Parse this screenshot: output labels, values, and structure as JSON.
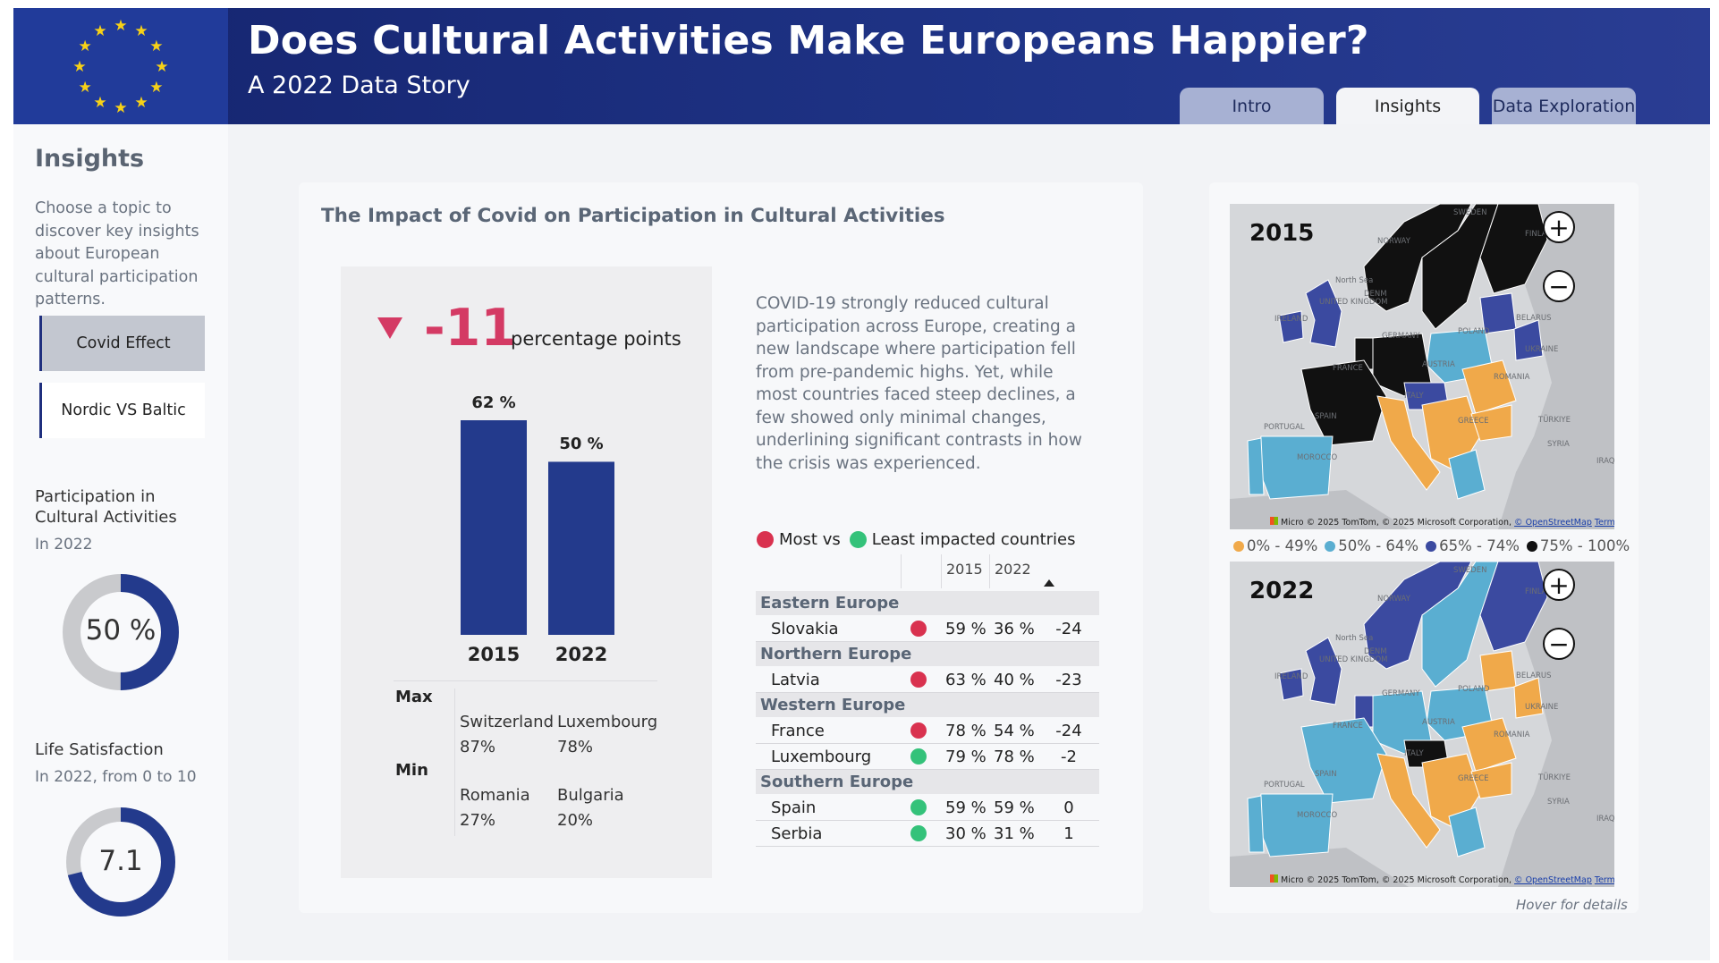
{
  "header": {
    "title": "Does Cultural Activities Make Europeans Happier?",
    "subtitle": "A 2022 Data Story",
    "tabs": [
      {
        "label": "Intro",
        "active": false
      },
      {
        "label": "Insights",
        "active": true
      },
      {
        "label": "Data Exploration",
        "active": false
      }
    ]
  },
  "sidebar": {
    "title": "Insights",
    "description": "Choose a topic to discover key insights about European cultural participation patterns.",
    "buttons": [
      {
        "label": "Covid Effect",
        "selected": true
      },
      {
        "label": "Nordic VS Baltic",
        "selected": false
      }
    ],
    "participation": {
      "label": "Participation in Cultural Activities",
      "sub": "In 2022",
      "value_text": "50 %",
      "fraction": 0.5
    },
    "satisfaction": {
      "label": "Life Satisfaction",
      "sub": "In 2022, from 0 to 10",
      "value_text": "7.1",
      "fraction": 0.71
    }
  },
  "main": {
    "title": "The Impact of Covid on Participation in Cultural Activities",
    "delta": {
      "value": "-11",
      "unit": "percentage points"
    },
    "narrative": "COVID-19 strongly reduced cultural participation across Europe, creating a new landscape where participation fell from pre-pandemic highs. Yet, while most countries faced steep declines, a few showed only minimal changes, underlining significant contrasts in how the crisis was experienced.",
    "maxmin": {
      "max_label": "Max",
      "min_label": "Min",
      "max": [
        {
          "country": "Switzerland",
          "value": "87%"
        },
        {
          "country": "Luxembourg",
          "value": "78%"
        }
      ],
      "min": [
        {
          "country": "Romania",
          "value": "27%"
        },
        {
          "country": "Bulgaria",
          "value": "20%"
        }
      ]
    },
    "impact_legend": {
      "most": "Most vs",
      "least": "Least impacted countries",
      "most_color": "#d9324f",
      "least_color": "#34c27a"
    },
    "table": {
      "headers": [
        "2015",
        "2022"
      ],
      "groups": [
        {
          "name": "Eastern Europe",
          "rows": [
            {
              "country": "Slovakia",
              "impact": "most",
              "v2015": "59 %",
              "v2022": "36 %",
              "diff": "-24"
            }
          ]
        },
        {
          "name": "Northern Europe",
          "rows": [
            {
              "country": "Latvia",
              "impact": "most",
              "v2015": "63 %",
              "v2022": "40 %",
              "diff": "-23"
            }
          ]
        },
        {
          "name": "Western Europe",
          "rows": [
            {
              "country": "France",
              "impact": "most",
              "v2015": "78 %",
              "v2022": "54 %",
              "diff": "-24"
            },
            {
              "country": "Luxembourg",
              "impact": "least",
              "v2015": "79 %",
              "v2022": "78 %",
              "diff": "-2"
            }
          ]
        },
        {
          "name": "Southern Europe",
          "rows": [
            {
              "country": "Spain",
              "impact": "least",
              "v2015": "59 %",
              "v2022": "59 %",
              "diff": "0"
            },
            {
              "country": "Serbia",
              "impact": "least",
              "v2015": "30 %",
              "v2022": "31 %",
              "diff": "1"
            }
          ]
        }
      ]
    }
  },
  "chart_data": {
    "type": "bar",
    "categories": [
      "2015",
      "2022"
    ],
    "values": [
      62,
      50
    ],
    "data_labels": [
      "62 %",
      "50 %"
    ],
    "ylim": [
      0,
      62
    ],
    "bar_color": "#233a8c"
  },
  "maps": {
    "map2015": {
      "year": "2015"
    },
    "map2022": {
      "year": "2022"
    },
    "attribution_brand": "Micro",
    "attribution": "© 2025 TomTom, © 2025 Microsoft Corporation,",
    "osm": "© OpenStreetMap",
    "terms": "Terms",
    "labels": [
      "SWEDEN",
      "FINLAND",
      "NORWAY",
      "North Sea",
      "DENM",
      "UNITED KINGDOM",
      "IRELAND",
      "BELARUS",
      "POLAND",
      "GERMANY",
      "UKRAINE",
      "FRANCE",
      "AUSTRIA",
      "ROMANIA",
      "ITALY",
      "SPAIN",
      "PORTUGAL",
      "GREECE",
      "TÜRKIYE",
      "SYRIA",
      "MOROCCO",
      "IRAQ"
    ],
    "legend": [
      {
        "label": "0% - 49%",
        "color": "#f0a94a"
      },
      {
        "label": "50% - 64%",
        "color": "#5aaed1"
      },
      {
        "label": "65% - 74%",
        "color": "#3b4aa0"
      },
      {
        "label": "75% - 100%",
        "color": "#111111"
      }
    ],
    "hover_hint": "Hover for details",
    "zoom_in": "+",
    "zoom_out": "−"
  }
}
